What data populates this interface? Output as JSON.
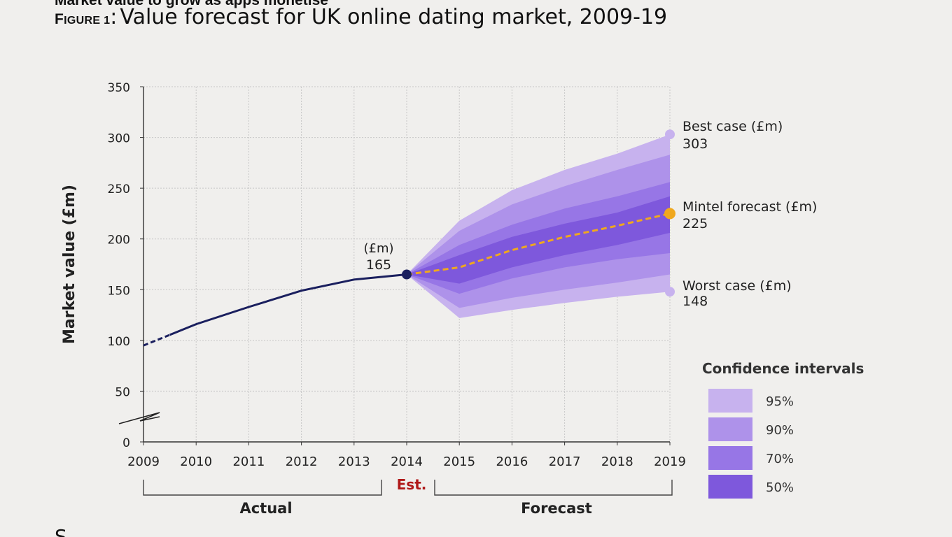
{
  "header": {
    "top_clipped_text": "Market value to grow as apps monetise",
    "figure_label_first": "F",
    "figure_label_rest": "IGURE",
    "figure_number": "1",
    "separator": ":",
    "title": "Value forecast for UK online dating market, 2009-19"
  },
  "colors": {
    "actual_line": "#1a1f5e",
    "forecast_line": "#f0a81e",
    "ci_95": "#c7b2ee",
    "ci_90": "#ae92ea",
    "ci_70": "#9776e6",
    "ci_50": "#7e58dc",
    "estimate_text": "#b01919",
    "grid": "#c7c7c7"
  },
  "chart_data": {
    "type": "area",
    "title": "Value forecast for UK online dating market, 2009-19",
    "xlabel": "",
    "ylabel": "Market value (£m)",
    "x": [
      2009,
      2010,
      2011,
      2012,
      2013,
      2014,
      2015,
      2016,
      2017,
      2018,
      2019
    ],
    "x_tick_labels": [
      "2009",
      "2010",
      "2011",
      "2012",
      "2013",
      "2014",
      "2015",
      "2016",
      "2017",
      "2018",
      "2019"
    ],
    "y_tick_labels": [
      "0",
      "50",
      "100",
      "150",
      "200",
      "250",
      "300",
      "350"
    ],
    "ylim": [
      0,
      350
    ],
    "axis_break": true,
    "grid": true,
    "legend": {
      "title": "Confidence intervals",
      "position": "bottom-right",
      "items": [
        "95%",
        "90%",
        "70%",
        "50%"
      ]
    },
    "series": [
      {
        "name": "Actual",
        "style": "solid",
        "x": [
          2009,
          2010,
          2011,
          2012,
          2013,
          2014
        ],
        "values": [
          95,
          116,
          133,
          149,
          160,
          165
        ]
      },
      {
        "name": "Mintel forecast (£m)",
        "style": "dashed",
        "x": [
          2014,
          2015,
          2016,
          2017,
          2018,
          2019
        ],
        "values": [
          165,
          172,
          189,
          202,
          213,
          225
        ]
      }
    ],
    "confidence_intervals": [
      {
        "name": "95%",
        "x": [
          2014,
          2015,
          2016,
          2017,
          2018,
          2019
        ],
        "upper": [
          165,
          218,
          248,
          268,
          284,
          303
        ],
        "lower": [
          165,
          122,
          130,
          137,
          143,
          148
        ]
      },
      {
        "name": "90%",
        "x": [
          2014,
          2015,
          2016,
          2017,
          2018,
          2019
        ],
        "upper": [
          165,
          208,
          234,
          252,
          268,
          283
        ],
        "lower": [
          165,
          132,
          142,
          150,
          157,
          165
        ]
      },
      {
        "name": "70%",
        "x": [
          2014,
          2015,
          2016,
          2017,
          2018,
          2019
        ],
        "upper": [
          165,
          194,
          214,
          230,
          242,
          256
        ],
        "lower": [
          165,
          146,
          161,
          172,
          180,
          186
        ]
      },
      {
        "name": "50%",
        "x": [
          2014,
          2015,
          2016,
          2017,
          2018,
          2019
        ],
        "upper": [
          165,
          184,
          202,
          215,
          226,
          242
        ],
        "lower": [
          165,
          156,
          172,
          184,
          194,
          206
        ]
      }
    ],
    "annotations": {
      "current_unit": "(£m)",
      "current_value_text": "165",
      "current_value": 165,
      "best_case_label": "Best case (£m)",
      "best_case_text": "303",
      "best_case_value": 303,
      "forecast_label": "Mintel forecast (£m)",
      "forecast_text": "225",
      "forecast_value": 225,
      "worst_case_label": "Worst case (£m)",
      "worst_case_text": "148",
      "worst_case_value": 148
    },
    "periods": {
      "actual": "Actual",
      "estimate": "Est.",
      "forecast": "Forecast"
    }
  },
  "footer": {
    "clipped_text": "S"
  }
}
